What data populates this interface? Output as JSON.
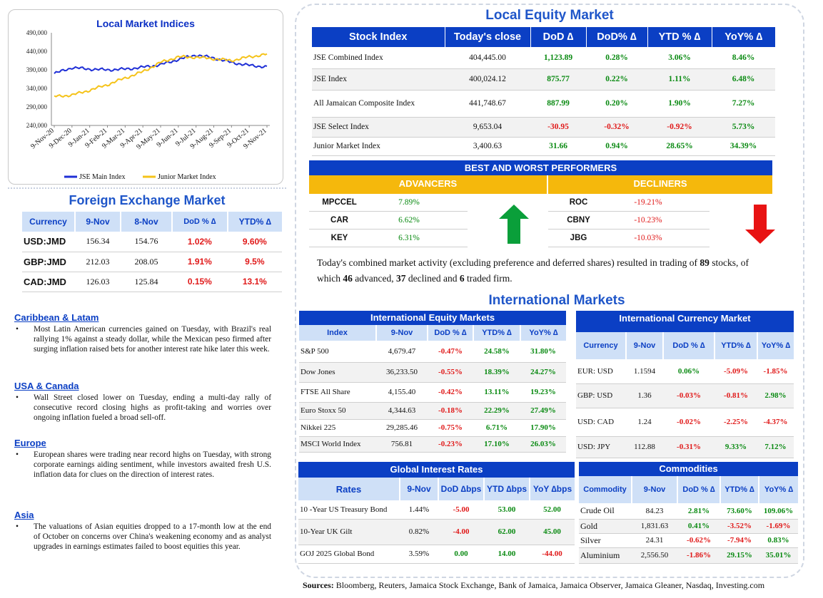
{
  "left": {
    "chart_data": {
      "type": "line",
      "title": "Local Market Indices",
      "yticks": [
        "490,000",
        "440,000",
        "390,000",
        "340,000",
        "290,000",
        "240,000"
      ],
      "ylim": [
        240000,
        490000
      ],
      "xticks": [
        "9-Nov-20",
        "9-Dec-20",
        "9-Jan-21",
        "9-Feb-21",
        "9-Mar-21",
        "9-Apr-21",
        "9-May-21",
        "9-Jun-21",
        "9-Jul-21",
        "9-Aug-21",
        "9-Sep-21",
        "9-Oct-21",
        "9-Nov-21"
      ],
      "series": [
        {
          "name": "JSE Main Index",
          "color": "#1f2fd6",
          "values": [
            380000,
            396000,
            392000,
            390000,
            392000,
            397000,
            404000,
            418000,
            430000,
            422000,
            410000,
            402000,
            398000
          ]
        },
        {
          "name": "Junior Market Index",
          "color": "#f5c31a",
          "values": [
            318000,
            322000,
            335000,
            350000,
            368000,
            385000,
            410000,
            425000,
            424000,
            420000,
            415000,
            425000,
            432000
          ]
        }
      ],
      "legend": "bottom"
    },
    "fx": {
      "title": "Foreign Exchange Market",
      "headers": [
        "Currency",
        "9-Nov",
        "8-Nov",
        "DoD % ∆",
        "YTD% ∆"
      ],
      "rows": [
        [
          "USD:JMD",
          "156.34",
          "154.76",
          "1.02%",
          "9.60%"
        ],
        [
          "GBP:JMD",
          "212.03",
          "208.05",
          "1.91%",
          "9.5%"
        ],
        [
          "CAD:JMD",
          "126.03",
          "125.84",
          "0.15%",
          "13.1%"
        ]
      ]
    },
    "news": [
      {
        "title": "Caribbean & Latam",
        "text": "Most Latin American currencies gained on Tuesday, with Brazil's real rallying 1% against a steady dollar, while the Mexican peso firmed after surging inflation raised bets for another interest rate hike later this week."
      },
      {
        "title": "USA & Canada",
        "text": "Wall Street closed lower on Tuesday, ending a multi-day rally of consecutive record closing highs as profit-taking and worries over ongoing inflation fueled a broad sell-off."
      },
      {
        "title": "Europe",
        "text": "European shares were trading near record highs on Tuesday, with strong corporate earnings aiding sentiment, while investors awaited fresh U.S. inflation data for clues on the direction of interest rates."
      },
      {
        "title": "Asia",
        "text": "The valuations of Asian equities dropped to a 17-month low at the end of October on concerns over China's weakening economy and as analyst upgrades in earnings estimates failed to boost equities this year."
      }
    ]
  },
  "equity": {
    "title": "Local Equity Market",
    "headers": [
      "Stock Index",
      "Today's close",
      "DoD  ∆",
      "DoD% ∆",
      "YTD % ∆",
      "YoY% ∆"
    ],
    "rows": [
      [
        "JSE Combined Index",
        "404,445.00",
        "1,123.89",
        "0.28%",
        "3.06%",
        "8.46%"
      ],
      [
        "JSE Index",
        "400,024.12",
        "875.77",
        "0.22%",
        "1.11%",
        "6.48%"
      ],
      [
        "All Jamaican Composite Index",
        "441,748.67",
        "887.99",
        "0.20%",
        "1.90%",
        "7.27%"
      ],
      [
        "JSE Select Index",
        "9,653.04",
        "-30.95",
        "-0.32%",
        "-0.92%",
        "5.73%"
      ],
      [
        "Junior Market Index",
        "3,400.63",
        "31.66",
        "0.94%",
        "28.65%",
        "34.39%"
      ]
    ]
  },
  "performers": {
    "title": "BEST AND WORST PERFORMERS",
    "advancers_label": "ADVANCERS",
    "decliners_label": "DECLINERS",
    "advancers": [
      [
        "MPCCEL",
        "7.89%"
      ],
      [
        "CAR",
        "6.62%"
      ],
      [
        "KEY",
        "6.31%"
      ]
    ],
    "decliners": [
      [
        "ROC",
        "-19.21%"
      ],
      [
        "CBNY",
        "-10.23%"
      ],
      [
        "JBG",
        "-10.03%"
      ]
    ]
  },
  "summary": {
    "pre": "Today's combined market activity (excluding preference and deferred shares) resulted in trading of ",
    "total": "89",
    "mid1": " stocks, of which ",
    "adv": "46",
    "mid2": " advanced, ",
    "dec": "37",
    "mid3": " declined and ",
    "firm": "6",
    "post": " traded firm."
  },
  "intl": {
    "title": "International Markets",
    "equity": {
      "title": "International Equity Markets",
      "headers": [
        "Index",
        "9-Nov",
        "DoD % ∆",
        "YTD% ∆",
        "YoY% ∆"
      ],
      "rows": [
        [
          "S&P 500",
          "4,679.47",
          "-0.47%",
          "24.58%",
          "31.80%"
        ],
        [
          "Dow Jones",
          "36,233.50",
          "-0.55%",
          "18.39%",
          "24.27%"
        ],
        [
          "FTSE All Share",
          "4,155.40",
          "-0.42%",
          "13.11%",
          "19.23%"
        ],
        [
          "Euro Stoxx 50",
          "4,344.63",
          "-0.18%",
          "22.29%",
          "27.49%"
        ],
        [
          "Nikkei 225",
          "29,285.46",
          "-0.75%",
          "6.71%",
          "17.90%"
        ],
        [
          "MSCI World Index",
          "756.81",
          "-0.23%",
          "17.10%",
          "26.03%"
        ]
      ]
    },
    "currency": {
      "title": "International Currency Market",
      "headers": [
        "Currency",
        "9-Nov",
        "DoD % ∆",
        "YTD% ∆",
        "YoY% ∆"
      ],
      "rows": [
        [
          "EUR: USD",
          "1.1594",
          "0.06%",
          "-5.09%",
          "-1.85%"
        ],
        [
          "GBP: USD",
          "1.36",
          "-0.03%",
          "-0.81%",
          "2.98%"
        ],
        [
          "USD: CAD",
          "1.24",
          "-0.02%",
          "-2.25%",
          "-4.37%"
        ],
        [
          "USD: JPY",
          "112.88",
          "-0.31%",
          "9.33%",
          "7.12%"
        ]
      ]
    },
    "rates": {
      "title": "Global Interest Rates",
      "headers": [
        "Rates",
        "9-Nov",
        "DoD ∆bps",
        "YTD ∆bps",
        "YoY ∆bps"
      ],
      "rows": [
        [
          "10 -Year US Treasury Bond",
          "1.44%",
          "-5.00",
          "53.00",
          "52.00"
        ],
        [
          "10-Year UK Gilt",
          "0.82%",
          "-4.00",
          "62.00",
          "45.00"
        ],
        [
          "GOJ 2025 Global Bond",
          "3.59%",
          "0.00",
          "14.00",
          "-44.00"
        ]
      ]
    },
    "commodities": {
      "title": "Commodities",
      "headers": [
        "Commodity",
        "9-Nov",
        "DoD % ∆",
        "YTD% ∆",
        "YoY% ∆"
      ],
      "rows": [
        [
          "Crude Oil",
          "84.23",
          "2.81%",
          "73.60%",
          "109.06%"
        ],
        [
          "Gold",
          "1,831.63",
          "0.41%",
          "-3.52%",
          "-1.69%"
        ],
        [
          "Silver",
          "24.31",
          "-0.62%",
          "-7.94%",
          "0.83%"
        ],
        [
          "Aluminium",
          "2,556.50",
          "-1.86%",
          "29.15%",
          "35.01%"
        ]
      ]
    }
  },
  "sources": {
    "label": "Sources:",
    "text": " Bloomberg, Reuters, Jamaica Stock Exchange, Bank of Jamaica, Jamaica Observer, Jamaica Gleaner, Nasdaq, Investing.com"
  }
}
